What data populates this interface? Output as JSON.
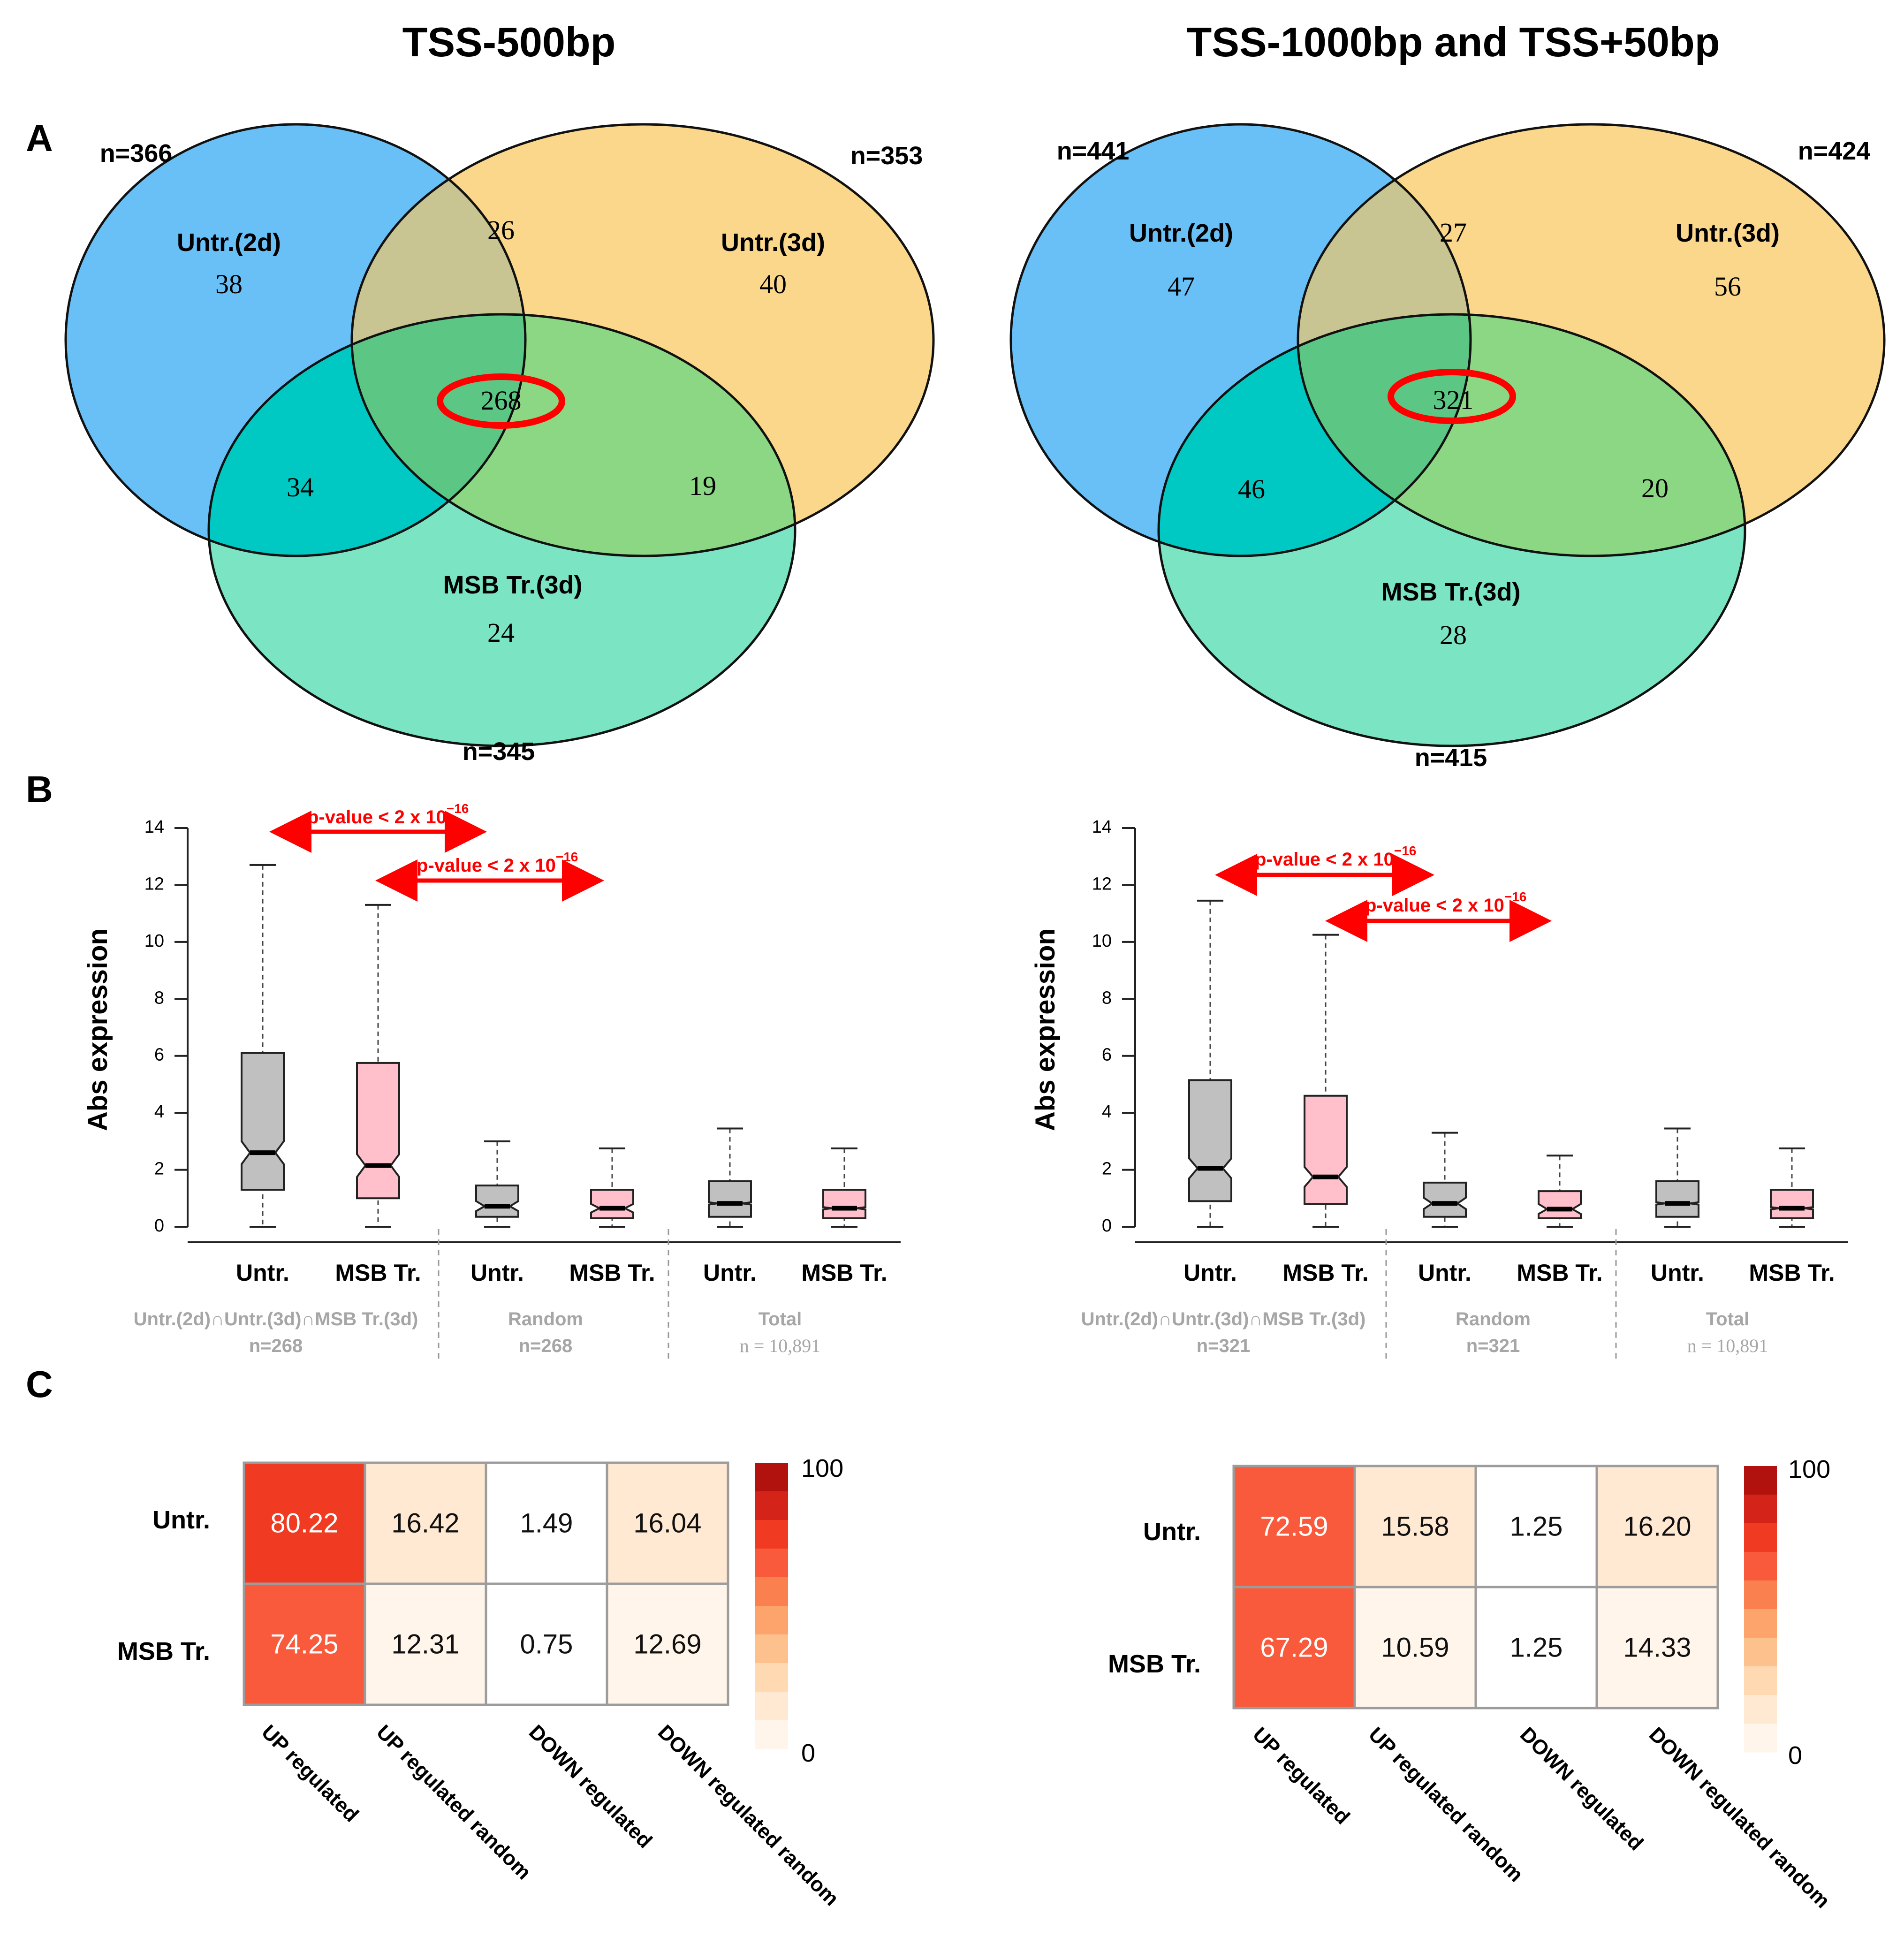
{
  "panels": [
    {
      "title": "TSS-500bp",
      "venn": {
        "sets": [
          {
            "label": "Untr.(2d)",
            "n_label": "n=366",
            "color": "#58b9f5"
          },
          {
            "label": "Untr.(3d)",
            "n_label": "n=353",
            "color": "#fbd78c"
          },
          {
            "label": "MSB Tr.(3d)",
            "n_label": "n=345",
            "color": "#63dfb9"
          }
        ],
        "regions": {
          "a_only": "38",
          "b_only": "40",
          "c_only": "24",
          "ab": "26",
          "ac": "34",
          "bc": "19",
          "abc": "268"
        }
      },
      "boxplot": {
        "ylabel": "Abs expression",
        "ylim": [
          0,
          14
        ],
        "yticks": [
          "0",
          "2",
          "4",
          "6",
          "8",
          "10",
          "12",
          "14"
        ],
        "tick_values": [
          0,
          2,
          4,
          6,
          8,
          10,
          12,
          14
        ],
        "pvalue_1": "p-value < 2 x 10",
        "pvalue_2": "p-value < 2 x 10",
        "pvalue_exp": "−16",
        "boxes": [
          {
            "label": "Untr.",
            "color": "#c0c0c0",
            "whisker_low": 0,
            "q1": 1.3,
            "median": 2.6,
            "q3": 6.1,
            "whisker_high": 12.7,
            "notch_low": 2.2,
            "notch_high": 3.0
          },
          {
            "label": "MSB Tr.",
            "color": "#ffc0cb",
            "whisker_low": 0,
            "q1": 1.0,
            "median": 2.15,
            "q3": 5.75,
            "whisker_high": 11.3,
            "notch_low": 1.75,
            "notch_high": 2.55
          },
          {
            "label": "Untr.",
            "color": "#c0c0c0",
            "whisker_low": 0,
            "q1": 0.35,
            "median": 0.72,
            "q3": 1.45,
            "whisker_high": 3.0,
            "notch_low": 0.55,
            "notch_high": 0.9
          },
          {
            "label": "MSB Tr.",
            "color": "#ffc0cb",
            "whisker_low": 0,
            "q1": 0.3,
            "median": 0.65,
            "q3": 1.3,
            "whisker_high": 2.75,
            "notch_low": 0.5,
            "notch_high": 0.8
          },
          {
            "label": "Untr.",
            "color": "#c0c0c0",
            "whisker_low": 0,
            "q1": 0.35,
            "median": 0.82,
            "q3": 1.6,
            "whisker_high": 3.45,
            "notch_low": 0.78,
            "notch_high": 0.86
          },
          {
            "label": "MSB Tr.",
            "color": "#ffc0cb",
            "whisker_low": 0,
            "q1": 0.3,
            "median": 0.65,
            "q3": 1.3,
            "whisker_high": 2.75,
            "notch_low": 0.61,
            "notch_high": 0.69
          }
        ],
        "groups": [
          {
            "name": "Untr.(2d)∩Untr.(3d)∩MSB Tr.(3d)",
            "n": "n=268"
          },
          {
            "name": "Random",
            "n": "n=268"
          },
          {
            "name": "Total",
            "n": "n = 10,891"
          }
        ]
      },
      "heatmap": {
        "rows": [
          "Untr.",
          "MSB Tr."
        ],
        "columns": [
          "UP regulated",
          "UP regulated random",
          "DOWN regulated",
          "DOWN regulated random"
        ],
        "values": [
          [
            "80.22",
            "16.42",
            "1.49",
            "16.04"
          ],
          [
            "74.25",
            "12.31",
            "0.75",
            "12.69"
          ]
        ],
        "scale_max": "100",
        "scale_min": "0"
      }
    },
    {
      "title": "TSS-1000bp and TSS+50bp",
      "venn": {
        "sets": [
          {
            "label": "Untr.(2d)",
            "n_label": "n=441",
            "color": "#58b9f5"
          },
          {
            "label": "Untr.(3d)",
            "n_label": "n=424",
            "color": "#fbd78c"
          },
          {
            "label": "MSB Tr.(3d)",
            "n_label": "n=415",
            "color": "#63dfb9"
          }
        ],
        "regions": {
          "a_only": "47",
          "b_only": "56",
          "c_only": "28",
          "ab": "27",
          "ac": "46",
          "bc": "20",
          "abc": "321"
        }
      },
      "boxplot": {
        "ylabel": "Abs expression",
        "ylim": [
          0,
          14
        ],
        "yticks": [
          "0",
          "2",
          "4",
          "6",
          "8",
          "10",
          "12",
          "14"
        ],
        "tick_values": [
          0,
          2,
          4,
          6,
          8,
          10,
          12,
          14
        ],
        "pvalue_1": "p-value < 2 x 10",
        "pvalue_2": "p-value < 2 x 10",
        "pvalue_exp": "−16",
        "boxes": [
          {
            "label": "Untr.",
            "color": "#c0c0c0",
            "whisker_low": 0,
            "q1": 0.9,
            "median": 2.05,
            "q3": 5.15,
            "whisker_high": 11.45,
            "notch_low": 1.7,
            "notch_high": 2.4
          },
          {
            "label": "MSB Tr.",
            "color": "#ffc0cb",
            "whisker_low": 0,
            "q1": 0.8,
            "median": 1.75,
            "q3": 4.6,
            "whisker_high": 10.25,
            "notch_low": 1.4,
            "notch_high": 2.1
          },
          {
            "label": "Untr.",
            "color": "#c0c0c0",
            "whisker_low": 0,
            "q1": 0.35,
            "median": 0.82,
            "q3": 1.55,
            "whisker_high": 3.3,
            "notch_low": 0.62,
            "notch_high": 1.02
          },
          {
            "label": "MSB Tr.",
            "color": "#ffc0cb",
            "whisker_low": 0,
            "q1": 0.3,
            "median": 0.62,
            "q3": 1.25,
            "whisker_high": 2.5,
            "notch_low": 0.45,
            "notch_high": 0.8
          },
          {
            "label": "Untr.",
            "color": "#c0c0c0",
            "whisker_low": 0,
            "q1": 0.35,
            "median": 0.82,
            "q3": 1.6,
            "whisker_high": 3.45,
            "notch_low": 0.78,
            "notch_high": 0.86
          },
          {
            "label": "MSB Tr.",
            "color": "#ffc0cb",
            "whisker_low": 0,
            "q1": 0.3,
            "median": 0.65,
            "q3": 1.3,
            "whisker_high": 2.75,
            "notch_low": 0.61,
            "notch_high": 0.69
          }
        ],
        "groups": [
          {
            "name": "Untr.(2d)∩Untr.(3d)∩MSB Tr.(3d)",
            "n": "n=321"
          },
          {
            "name": "Random",
            "n": "n=321"
          },
          {
            "name": "Total",
            "n": "n = 10,891"
          }
        ]
      },
      "heatmap": {
        "rows": [
          "Untr.",
          "MSB Tr."
        ],
        "columns": [
          "UP regulated",
          "UP regulated random",
          "DOWN regulated",
          "DOWN regulated random"
        ],
        "values": [
          [
            "72.59",
            "15.58",
            "1.25",
            "16.20"
          ],
          [
            "67.29",
            "10.59",
            "1.25",
            "14.33"
          ]
        ],
        "scale_max": "100",
        "scale_min": "0"
      }
    }
  ],
  "section_labels": {
    "a": "A",
    "b": "B",
    "c": "C"
  },
  "colors": {
    "red_accent": "#ff0000",
    "ab_overlap": "#c8c592",
    "ac_overlap": "#00c8c2",
    "bc_overlap": "#8bd784",
    "abc_overlap": "#5cc685",
    "heat_scale": [
      "#ffffff",
      "#fff5ea",
      "#ffe9d2",
      "#fed9b1",
      "#fdc18d",
      "#fca46c",
      "#fb8050",
      "#f95a3c",
      "#f03b22",
      "#d4241a",
      "#b2120e"
    ]
  },
  "chart_data": [
    {
      "type": "table",
      "title": "TSS-500bp",
      "venn_sets": [
        {
          "name": "Untr.(2d)",
          "n": 366
        },
        {
          "name": "Untr.(3d)",
          "n": 353
        },
        {
          "name": "MSB Tr.(3d)",
          "n": 345
        }
      ],
      "venn_regions": {
        "Untr.(2d) only": 38,
        "Untr.(3d) only": 40,
        "MSB Tr.(3d) only": 24,
        "Untr.(2d)&Untr.(3d)": 26,
        "Untr.(2d)&MSB Tr.(3d)": 34,
        "Untr.(3d)&MSB Tr.(3d)": 19,
        "all three": 268
      },
      "heatmap_rows": [
        "Untr.",
        "MSB Tr."
      ],
      "heatmap_columns": [
        "UP regulated",
        "UP regulated random",
        "DOWN regulated",
        "DOWN regulated random"
      ],
      "heatmap_values": [
        [
          80.22,
          16.42,
          1.49,
          16.04
        ],
        [
          74.25,
          12.31,
          0.75,
          12.69
        ]
      ],
      "heatmap_range": [
        0,
        100
      ]
    },
    {
      "type": "table",
      "title": "TSS-1000bp and TSS+50bp",
      "venn_sets": [
        {
          "name": "Untr.(2d)",
          "n": 441
        },
        {
          "name": "Untr.(3d)",
          "n": 424
        },
        {
          "name": "MSB Tr.(3d)",
          "n": 415
        }
      ],
      "venn_regions": {
        "Untr.(2d) only": 47,
        "Untr.(3d) only": 56,
        "MSB Tr.(3d) only": 28,
        "Untr.(2d)&Untr.(3d)": 27,
        "Untr.(2d)&MSB Tr.(3d)": 46,
        "Untr.(3d)&MSB Tr.(3d)": 20,
        "all three": 321
      },
      "heatmap_rows": [
        "Untr.",
        "MSB Tr."
      ],
      "heatmap_columns": [
        "UP regulated",
        "UP regulated random",
        "DOWN regulated",
        "DOWN regulated random"
      ],
      "heatmap_values": [
        [
          72.59,
          15.58,
          1.25,
          16.2
        ],
        [
          67.29,
          10.59,
          1.25,
          14.33
        ]
      ],
      "heatmap_range": [
        0,
        100
      ]
    }
  ]
}
